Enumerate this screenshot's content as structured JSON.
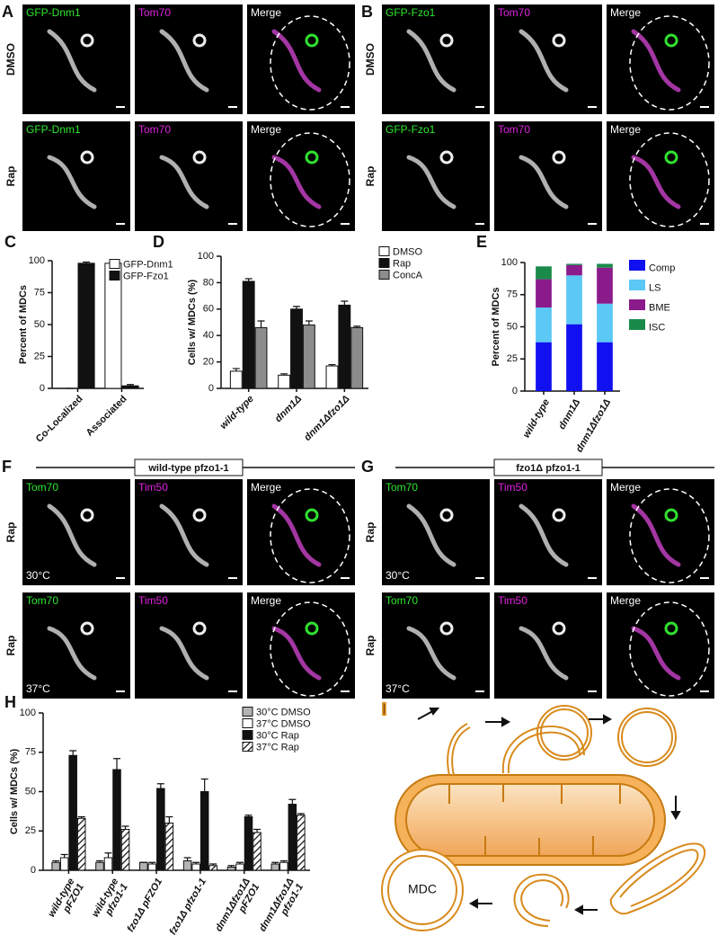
{
  "micrographs": [
    {
      "letter": "A",
      "channels": [
        "GFP-Dnm1",
        "Tom70",
        "Merge"
      ],
      "rows": [
        "DMSO",
        "Rap"
      ]
    },
    {
      "letter": "B",
      "channels": [
        "GFP-Fzo1",
        "Tom70",
        "Merge"
      ],
      "rows": [
        "DMSO",
        "Rap"
      ]
    },
    {
      "letter": "F",
      "header": "wild-type pfzo1-1",
      "channels": [
        "Tom70",
        "Tim50",
        "Merge"
      ],
      "rows": [
        "Rap",
        "Rap"
      ],
      "temperatures": [
        "30°C",
        "37°C"
      ]
    },
    {
      "letter": "G",
      "header": "fzo1Δ pfzo1-1",
      "channels": [
        "Tom70",
        "Tim50",
        "Merge"
      ],
      "rows": [
        "Rap",
        "Rap"
      ],
      "temperatures": [
        "30°C",
        "37°C"
      ]
    }
  ],
  "chart_data": [
    {
      "letter": "C",
      "type": "bar",
      "ylabel": "Percent of MDCs",
      "categories": [
        [
          "Co-Localized"
        ],
        [
          "Associated"
        ]
      ],
      "series": [
        {
          "name": "GFP-Dnm1",
          "color": "#ffffff",
          "values": [
            0,
            98
          ],
          "errors": [
            0,
            1
          ]
        },
        {
          "name": "GFP-Fzo1",
          "color": "#111111",
          "values": [
            98,
            2
          ],
          "errors": [
            1,
            1
          ]
        }
      ],
      "ylim": [
        0,
        100
      ],
      "yticks": [
        0,
        25,
        50,
        75,
        100
      ],
      "legend": "top-right"
    },
    {
      "letter": "D",
      "type": "bar",
      "ylabel": "Cells w/ MDCs (%)",
      "categories": [
        [
          "wild-type"
        ],
        [
          "dnm1Δ"
        ],
        [
          "dnm1Δfzo1Δ"
        ]
      ],
      "series": [
        {
          "name": "DMSO",
          "color": "#ffffff",
          "values": [
            13,
            10,
            17
          ],
          "errors": [
            2,
            1,
            1
          ]
        },
        {
          "name": "Rap",
          "color": "#111111",
          "values": [
            81,
            60,
            63
          ],
          "errors": [
            2,
            2,
            3
          ]
        },
        {
          "name": "ConcA",
          "color": "#8c8c8c",
          "values": [
            46,
            48,
            46
          ],
          "errors": [
            5,
            3,
            1
          ]
        }
      ],
      "ylim": [
        0,
        100
      ],
      "yticks": [
        0,
        20,
        40,
        60,
        80,
        100
      ],
      "legend": "top-right"
    },
    {
      "letter": "E",
      "type": "stacked_bar",
      "ylabel": "Percent of MDCs",
      "categories": [
        [
          "wild-type"
        ],
        [
          "dnm1Δ"
        ],
        [
          "dnm1Δfzo1Δ"
        ]
      ],
      "series": [
        {
          "name": "Comp",
          "color": "#1010f0",
          "values": [
            38,
            52,
            38
          ]
        },
        {
          "name": "LS",
          "color": "#5bc8f5",
          "values": [
            27,
            38,
            30
          ]
        },
        {
          "name": "BME",
          "color": "#8b1a8b",
          "values": [
            22,
            8,
            28
          ]
        },
        {
          "name": "ISC",
          "color": "#1a8a4a",
          "values": [
            10,
            1,
            3
          ]
        }
      ],
      "ylim": [
        0,
        100
      ],
      "yticks": [
        0,
        25,
        50,
        75,
        100
      ],
      "legend": "right"
    },
    {
      "letter": "H",
      "type": "bar",
      "ylabel": "Cells w/ MDCs (%)",
      "categories": [
        [
          "wild-type",
          "pFZO1"
        ],
        [
          "wild-type",
          "pfzo1-1"
        ],
        [
          "fzo1Δ pFZO1"
        ],
        [
          "fzo1Δ pfzo1-1"
        ],
        [
          "dnm1Δfzo1Δ",
          "pFZO1"
        ],
        [
          "dnm1Δfzo1Δ",
          "pfzo1-1"
        ]
      ],
      "series": [
        {
          "name": "30°C DMSO",
          "color": "#b3b3b3",
          "values": [
            5,
            5,
            5,
            6,
            2,
            4
          ],
          "errors": [
            1,
            1,
            0,
            2,
            1,
            1
          ]
        },
        {
          "name": "37°C DMSO",
          "color": "#ffffff",
          "values": [
            8,
            8,
            4,
            4,
            4,
            5
          ],
          "errors": [
            2,
            3,
            1,
            1,
            1,
            1
          ]
        },
        {
          "name": "30°C Rap",
          "color": "#111111",
          "values": [
            73,
            64,
            52,
            50,
            34,
            42
          ],
          "errors": [
            3,
            7,
            3,
            8,
            1,
            3
          ]
        },
        {
          "name": "37°C Rap",
          "color": "#ffffff",
          "hatch": true,
          "values": [
            33,
            26,
            30,
            3,
            24,
            35
          ],
          "errors": [
            1,
            2,
            4,
            1,
            2,
            1
          ]
        }
      ],
      "ylim": [
        0,
        100
      ],
      "yticks": [
        0,
        25,
        50,
        75,
        100
      ],
      "legend": "top-right"
    }
  ],
  "diagram": {
    "letter": "I",
    "label": "MDC"
  }
}
